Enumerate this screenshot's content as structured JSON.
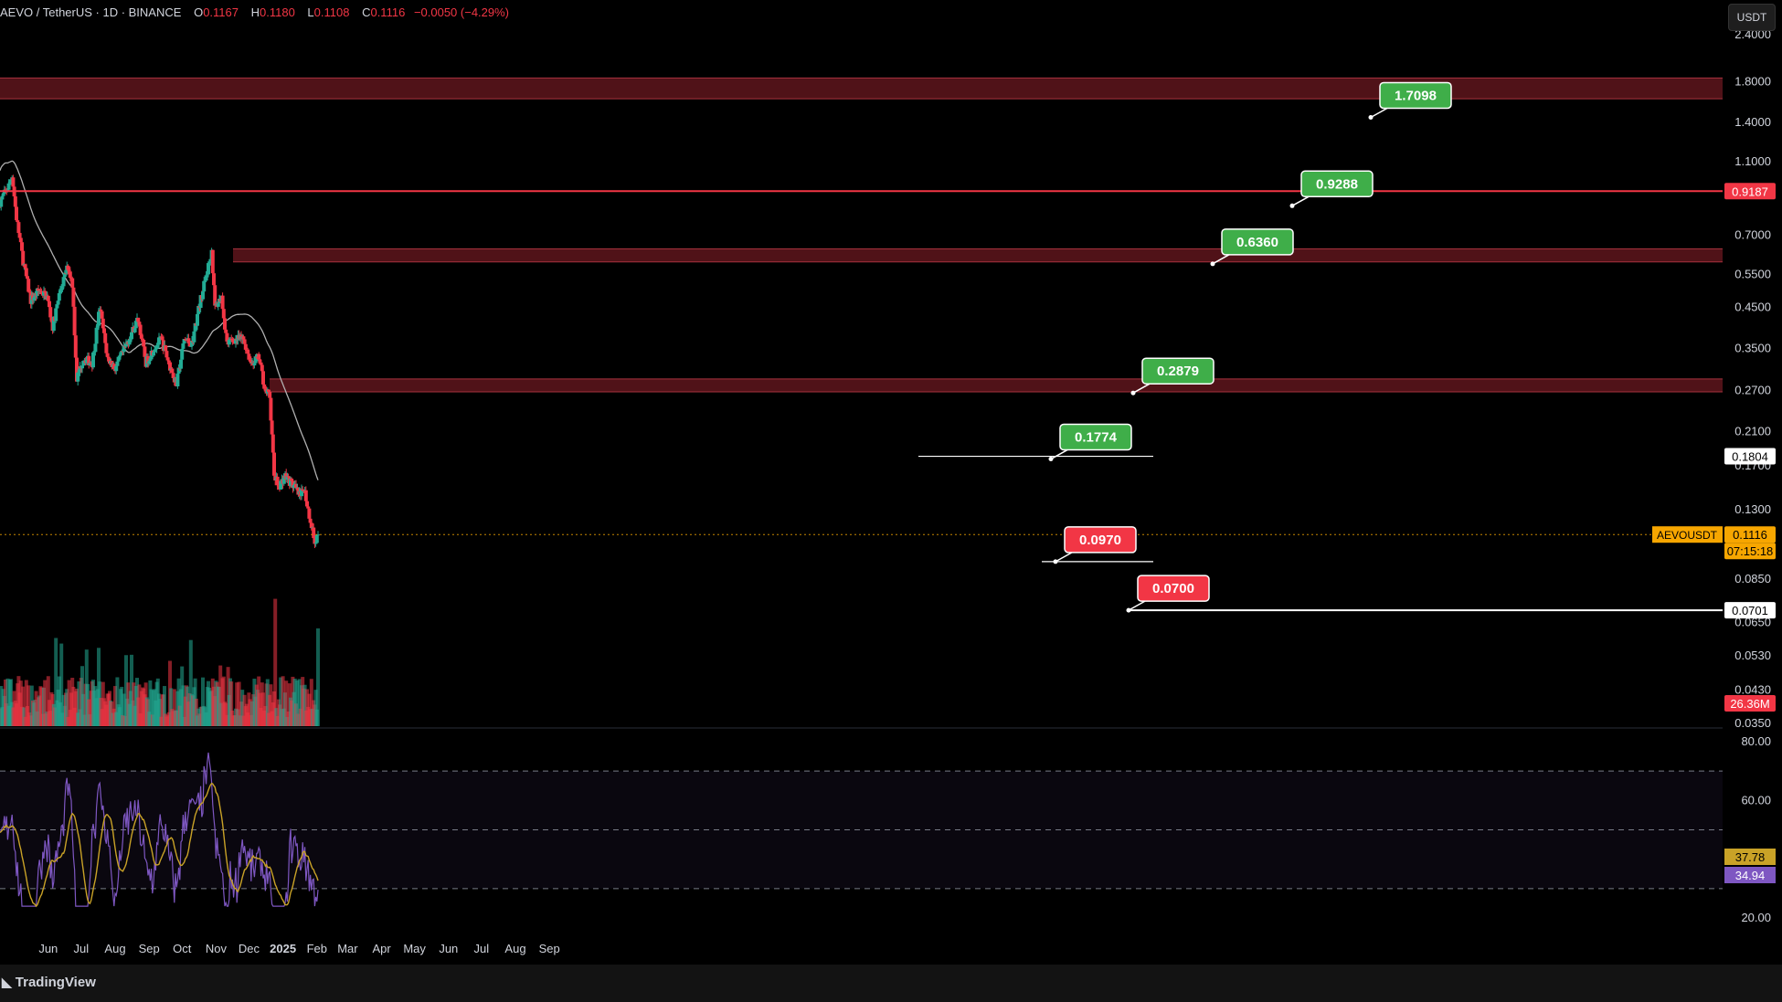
{
  "header": {
    "symbol": "AEVO / TetherUS · 1D · BINANCE",
    "o_label": "O",
    "o": "0.1167",
    "h_label": "H",
    "h": "0.1180",
    "l_label": "L",
    "l": "0.1108",
    "c_label": "C",
    "c": "0.1116",
    "change": "−0.0050 (−4.29%)"
  },
  "currency_button": "USDT",
  "brand": "TradingView",
  "colors": {
    "background": "#000000",
    "up": "#22ab94",
    "down": "#f23645",
    "target_green": "#3fae49",
    "target_red": "#f23645",
    "zone": "#6b1820",
    "ma": "#b0b0b0",
    "rsi": "#7e57c2",
    "rsi_ma": "#c9a227",
    "last_price": "#f7a600"
  },
  "chart_data": [
    {
      "type": "candlestick",
      "title": "AEVO / TetherUS · 1D · BINANCE",
      "scale": "log",
      "y_tick_labels": [
        "2.4000",
        "1.8000",
        "1.4000",
        "1.1000",
        "0.7000",
        "0.5500",
        "0.4500",
        "0.3500",
        "0.2700",
        "0.2100",
        "0.1700",
        "0.1300",
        "0.0850",
        "0.0650",
        "0.0530",
        "0.0430",
        "0.0350"
      ],
      "x_tick_labels": [
        "Jun",
        "Jul",
        "Aug",
        "Sep",
        "Oct",
        "Nov",
        "Dec",
        "2025",
        "Feb",
        "Mar",
        "Apr",
        "May",
        "Jun",
        "Jul",
        "Aug",
        "Sep"
      ],
      "price_path": [
        [
          "2024-05-28",
          0.86
        ],
        [
          "2024-06-05",
          0.95
        ],
        [
          "2024-06-08",
          1.02
        ],
        [
          "2024-06-12",
          0.78
        ],
        [
          "2024-06-18",
          0.6
        ],
        [
          "2024-06-25",
          0.47
        ],
        [
          "2024-07-03",
          0.5
        ],
        [
          "2024-07-10",
          0.48
        ],
        [
          "2024-07-15",
          0.4
        ],
        [
          "2024-07-22",
          0.5
        ],
        [
          "2024-07-29",
          0.58
        ],
        [
          "2024-08-02",
          0.52
        ],
        [
          "2024-08-06",
          0.29
        ],
        [
          "2024-08-12",
          0.33
        ],
        [
          "2024-08-20",
          0.32
        ],
        [
          "2024-08-27",
          0.45
        ],
        [
          "2024-09-03",
          0.33
        ],
        [
          "2024-09-10",
          0.31
        ],
        [
          "2024-09-17",
          0.34
        ],
        [
          "2024-09-24",
          0.38
        ],
        [
          "2024-10-01",
          0.42
        ],
        [
          "2024-10-08",
          0.32
        ],
        [
          "2024-10-15",
          0.35
        ],
        [
          "2024-10-22",
          0.37
        ],
        [
          "2024-10-29",
          0.32
        ],
        [
          "2024-11-05",
          0.28
        ],
        [
          "2024-11-12",
          0.37
        ],
        [
          "2024-11-19",
          0.36
        ],
        [
          "2024-11-26",
          0.46
        ],
        [
          "2024-12-03",
          0.56
        ],
        [
          "2024-12-07",
          0.64
        ],
        [
          "2024-12-10",
          0.45
        ],
        [
          "2024-12-16",
          0.48
        ],
        [
          "2024-12-21",
          0.36
        ],
        [
          "2024-12-28",
          0.37
        ],
        [
          "2025-01-05",
          0.37
        ],
        [
          "2025-01-12",
          0.32
        ],
        [
          "2025-01-19",
          0.33
        ],
        [
          "2025-01-25",
          0.27
        ],
        [
          "2025-01-29",
          0.26
        ],
        [
          "2025-02-02",
          0.16
        ],
        [
          "2025-02-06",
          0.15
        ],
        [
          "2025-02-12",
          0.16
        ],
        [
          "2025-02-20",
          0.15
        ],
        [
          "2025-02-26",
          0.14
        ],
        [
          "2025-03-01",
          0.15
        ],
        [
          "2025-03-05",
          0.13
        ],
        [
          "2025-03-09",
          0.115
        ],
        [
          "2025-03-11",
          0.105
        ],
        [
          "2025-03-14",
          0.1116
        ]
      ],
      "ma_last": 0.1804,
      "last_price": 0.1116,
      "last_price_label": "AEVOUSDT",
      "last_price_value": "0.1116",
      "countdown": "07:15:18",
      "volume_label": "26.36M",
      "zones": [
        [
          1.62,
          1.84
        ],
        [
          0.595,
          0.645
        ],
        [
          0.268,
          0.29
        ]
      ],
      "horizontal_lines": [
        {
          "value": 0.9187,
          "label": "0.9187",
          "color": "#f23645"
        },
        {
          "value": 0.0701,
          "label": "0.0701",
          "color": "#ffffff"
        }
      ],
      "targets": [
        {
          "label": "1.7098",
          "value": 1.7098,
          "color": "green"
        },
        {
          "label": "0.9288",
          "value": 0.9288,
          "color": "green"
        },
        {
          "label": "0.6360",
          "value": 0.636,
          "color": "green"
        },
        {
          "label": "0.2879",
          "value": 0.2879,
          "color": "green"
        },
        {
          "label": "0.1774",
          "value": 0.1774,
          "color": "green"
        },
        {
          "label": "0.0970",
          "value": 0.097,
          "color": "red"
        },
        {
          "label": "0.0700",
          "value": 0.07,
          "color": "red"
        }
      ]
    },
    {
      "type": "line",
      "y_tick_labels": [
        "80.00",
        "60.00",
        "20.00"
      ],
      "ylim": [
        20,
        80
      ],
      "bands": [
        70,
        50,
        30
      ],
      "rsi_value": "34.94",
      "rsi_ma_value": "37.78"
    }
  ]
}
